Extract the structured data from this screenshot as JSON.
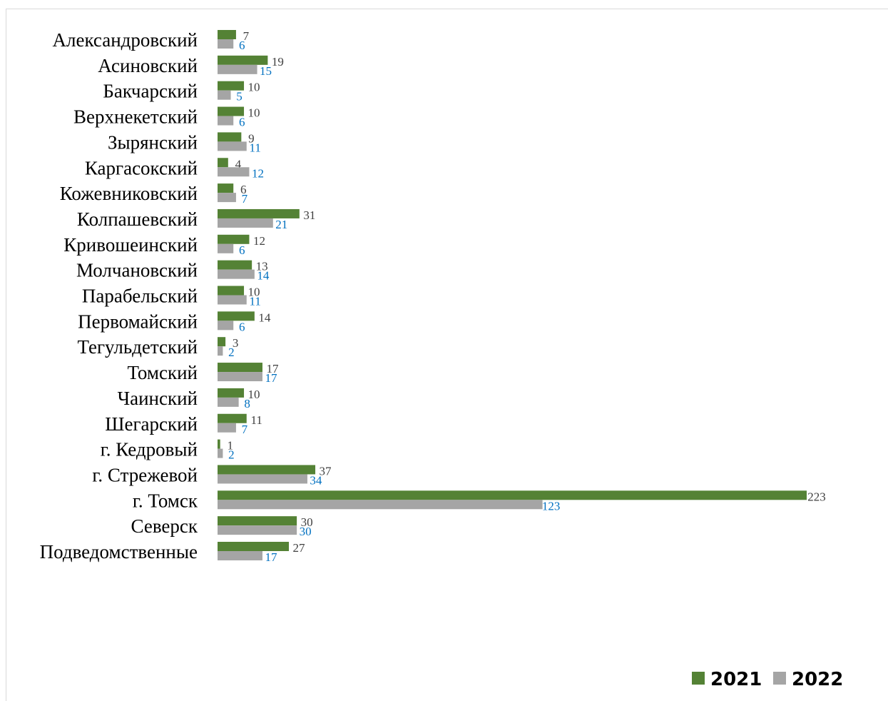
{
  "chart_data": {
    "type": "bar",
    "orientation": "horizontal",
    "categories": [
      "Александровский",
      "Асиновский",
      "Бакчарский",
      "Верхнекетский",
      "Зырянский",
      "Каргасокский",
      "Кожевниковский",
      "Колпашевский",
      "Кривошеинский",
      "Молчановский",
      "Парабельский",
      "Первомайский",
      "Тегульдетский",
      "Томский",
      "Чаинский",
      "Шегарский",
      "г. Кедровый",
      "г. Стрежевой",
      "г. Томск",
      "Северск",
      "Подведомственные"
    ],
    "series": [
      {
        "name": "2021",
        "color": "#548235",
        "label_color": "#404040",
        "values": [
          7,
          19,
          10,
          10,
          9,
          4,
          6,
          31,
          12,
          13,
          10,
          14,
          3,
          17,
          10,
          11,
          1,
          37,
          223,
          30,
          27
        ]
      },
      {
        "name": "2022",
        "color": "#a5a5a5",
        "label_color": "#0070c0",
        "values": [
          6,
          15,
          5,
          6,
          11,
          12,
          7,
          21,
          6,
          14,
          11,
          6,
          2,
          17,
          8,
          7,
          2,
          34,
          123,
          30,
          17
        ]
      }
    ],
    "xlim": [
      0,
      223
    ],
    "grid": false,
    "legend_position": "bottom-right"
  }
}
